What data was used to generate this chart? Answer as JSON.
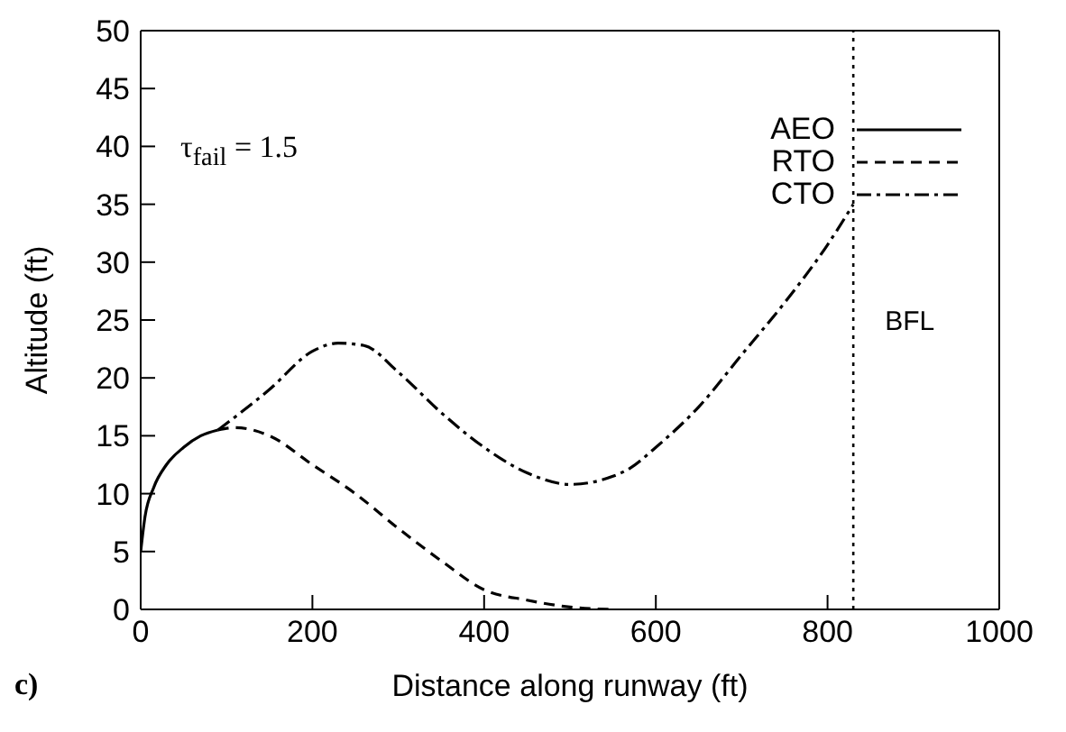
{
  "chart_data": {
    "type": "line",
    "xlabel": "Distance along runway (ft)",
    "ylabel": "Altitude (ft)",
    "xlim": [
      0,
      1000
    ],
    "xticks": [
      0,
      200,
      400,
      600,
      800,
      1000
    ],
    "ylim": [
      0,
      50
    ],
    "yticks": [
      0,
      5,
      10,
      15,
      20,
      25,
      30,
      35,
      40,
      45,
      50
    ],
    "legend": "top right",
    "marker": "none",
    "annotations": [
      "τ$_{fail}$ = 1.5",
      "c)"
    ],
    "ref_lines": [
      {
        "axis": "x",
        "value": 830,
        "label": "BFL",
        "color": "#000000",
        "line_style": "dotted"
      }
    ],
    "series": [
      {
        "name": "AEO",
        "color": "#000000",
        "line_style": "solid",
        "x": [
          0,
          5,
          15,
          30,
          50,
          70,
          90
        ],
        "values": [
          5,
          8,
          10.5,
          12.5,
          14,
          15,
          15.5
        ]
      },
      {
        "name": "RTO",
        "color": "#000000",
        "line_style": "dashed",
        "x": [
          90,
          110,
          150,
          200,
          250,
          300,
          350,
          400,
          450,
          500,
          550
        ],
        "values": [
          15.5,
          15.7,
          15,
          12.5,
          10,
          7,
          4.2,
          1.7,
          0.8,
          0.2,
          0
        ]
      },
      {
        "name": "CTO",
        "color": "#000000",
        "line_style": "dashdot",
        "x": [
          90,
          150,
          200,
          230,
          260,
          300,
          350,
          400,
          450,
          500,
          550,
          570,
          600,
          650,
          700,
          750,
          800,
          830
        ],
        "values": [
          15.5,
          19,
          22.3,
          23,
          22.8,
          20.5,
          17,
          14,
          11.8,
          10.8,
          11.5,
          12.2,
          14,
          17.5,
          22,
          26.5,
          31.5,
          35
        ]
      }
    ]
  }
}
